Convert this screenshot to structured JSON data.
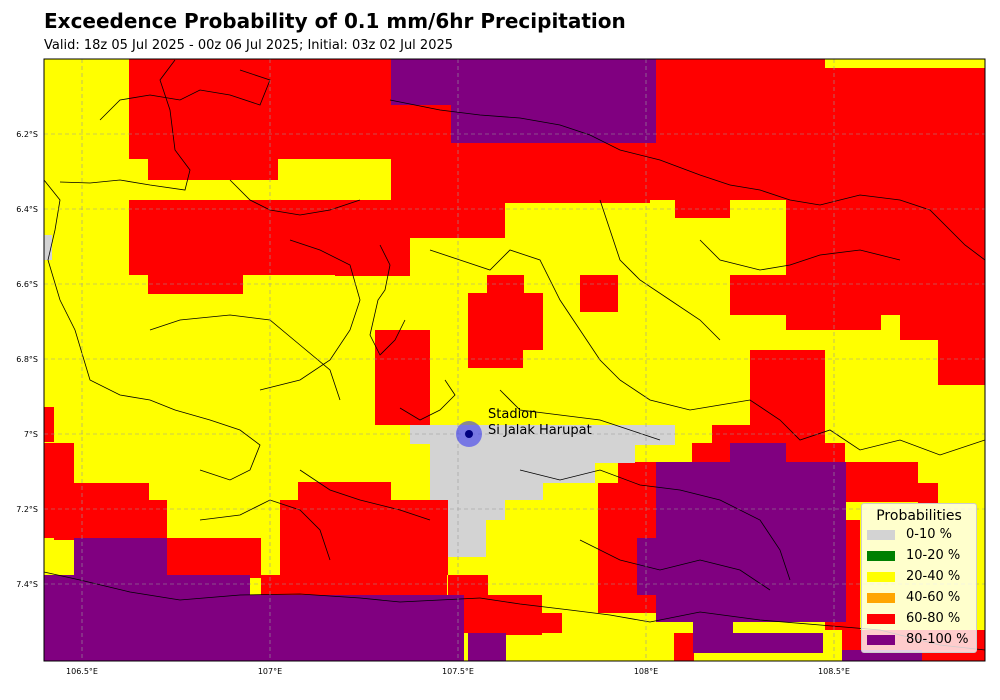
{
  "title": "Exceedence Probability of 0.1 mm/6hr Precipitation",
  "subtitle": "Valid: 18z 05 Jul 2025 - 00z 06 Jul 2025; Initial: 03z 02 Jul 2025",
  "map": {
    "x_ticks": [
      "106.5°E",
      "107°E",
      "107.5°E",
      "108°E",
      "108.5°E"
    ],
    "y_ticks": [
      "6.2°S",
      "6.4°S",
      "6.6°S",
      "6.8°S",
      "7°S",
      "7.2°S",
      "7.4°S"
    ],
    "gridlines": true
  },
  "station": {
    "label_line1": "Stadion",
    "label_line2": "Si Jalak Harupat",
    "marker_color": "#3b3bf0"
  },
  "legend": {
    "title": "Probabilities",
    "items": [
      {
        "label": "0-10 %",
        "color": "#d3d3d3"
      },
      {
        "label": "10-20 %",
        "color": "#008000"
      },
      {
        "label": "20-40 %",
        "color": "#ffff00"
      },
      {
        "label": "40-60 %",
        "color": "#ffa500"
      },
      {
        "label": "60-80 %",
        "color": "#ff0000"
      },
      {
        "label": "80-100 %",
        "color": "#800080"
      }
    ]
  }
}
